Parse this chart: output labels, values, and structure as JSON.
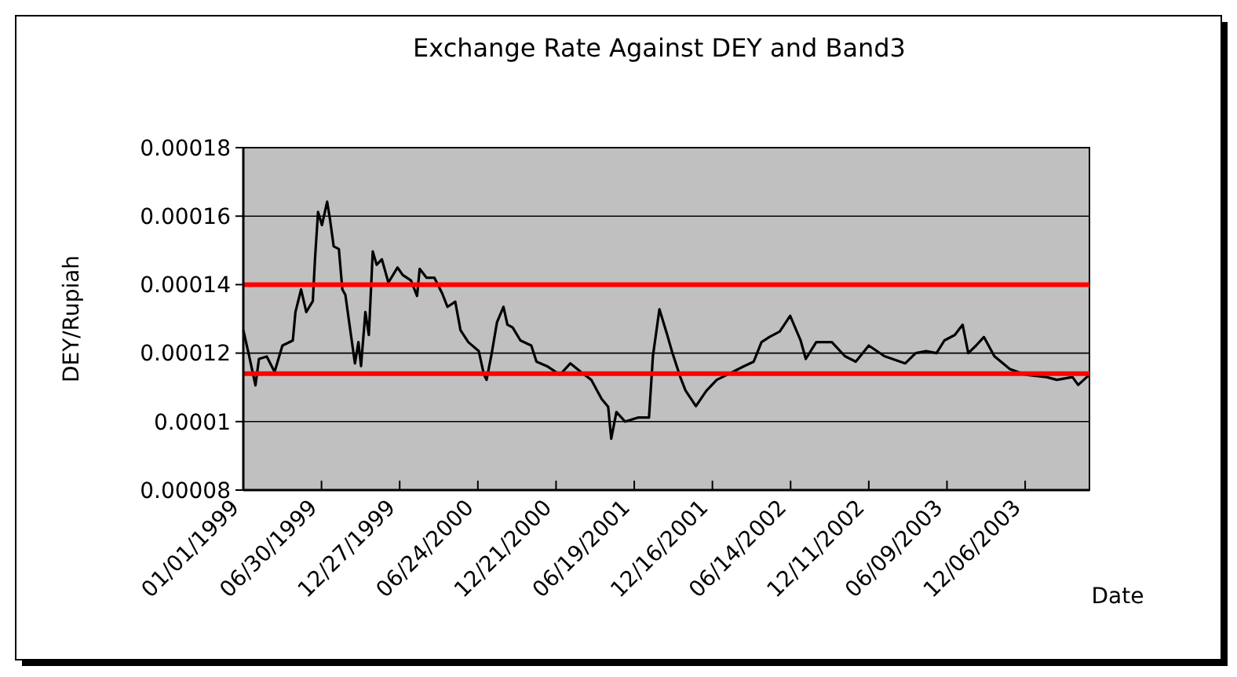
{
  "chart_data": {
    "type": "line",
    "title": "Exchange Rate Against DEY and Band3",
    "xlabel": "Date",
    "ylabel": "DEY/Rupiah",
    "x": [
      "1999-01-01",
      "1999-01-13",
      "1999-01-29",
      "1999-02-06",
      "1999-02-24",
      "1999-03-14",
      "1999-04-01",
      "1999-04-25",
      "1999-05-01",
      "1999-05-14",
      "1999-05-26",
      "1999-06-10",
      "1999-06-15",
      "1999-06-22",
      "1999-07-01",
      "1999-07-13",
      "1999-07-19",
      "1999-07-28",
      "1999-08-09",
      "1999-08-17",
      "1999-08-24",
      "1999-09-03",
      "1999-09-15",
      "1999-09-23",
      "1999-09-29",
      "1999-10-09",
      "1999-10-17",
      "1999-10-26",
      "1999-11-04",
      "1999-11-16",
      "1999-12-01",
      "1999-12-22",
      "2000-01-03",
      "2000-01-22",
      "2000-02-05",
      "2000-02-11",
      "2000-02-27",
      "2000-03-16",
      "2000-04-03",
      "2000-04-15",
      "2000-05-03",
      "2000-05-15",
      "2000-06-02",
      "2000-06-26",
      "2000-07-08",
      "2000-07-14",
      "2000-07-26",
      "2000-08-07",
      "2000-08-22",
      "2000-08-31",
      "2000-09-12",
      "2000-09-30",
      "2000-10-25",
      "2000-11-06",
      "2000-11-30",
      "2000-12-30",
      "2001-01-23",
      "2001-02-16",
      "2001-03-12",
      "2001-04-05",
      "2001-04-20",
      "2001-04-27",
      "2001-05-09",
      "2001-05-29",
      "2001-06-29",
      "2001-07-23",
      "2001-08-01",
      "2001-08-16",
      "2001-09-03",
      "2001-09-15",
      "2001-10-03",
      "2001-10-15",
      "2001-11-08",
      "2001-12-02",
      "2001-12-26",
      "2002-01-19",
      "2002-02-24",
      "2002-03-21",
      "2002-04-08",
      "2002-04-26",
      "2002-05-20",
      "2002-06-13",
      "2002-07-07",
      "2002-07-19",
      "2002-08-12",
      "2002-09-17",
      "2002-10-17",
      "2002-11-11",
      "2002-12-11",
      "2003-01-16",
      "2003-03-05",
      "2003-03-29",
      "2003-04-22",
      "2003-05-16",
      "2003-06-03",
      "2003-06-27",
      "2003-07-15",
      "2003-07-28",
      "2003-08-15",
      "2003-09-02",
      "2003-09-26",
      "2003-11-01",
      "2003-12-07",
      "2004-01-24",
      "2004-02-17",
      "2004-03-24",
      "2004-04-06",
      "2004-05-02"
    ],
    "series": [
      {
        "color": "#000000",
        "values": [
          0.0001267,
          0.00012,
          0.0001106,
          0.0001183,
          0.000119,
          0.0001145,
          0.0001222,
          0.0001237,
          0.000132,
          0.0001386,
          0.000132,
          0.0001352,
          0.0001474,
          0.0001612,
          0.0001574,
          0.0001642,
          0.0001596,
          0.0001512,
          0.0001504,
          0.0001386,
          0.000137,
          0.0001278,
          0.000117,
          0.0001232,
          0.0001162,
          0.000132,
          0.0001253,
          0.0001497,
          0.0001458,
          0.0001474,
          0.0001406,
          0.000145,
          0.0001428,
          0.0001412,
          0.0001367,
          0.0001446,
          0.000142,
          0.000142,
          0.0001374,
          0.0001335,
          0.000135,
          0.0001267,
          0.0001232,
          0.0001206,
          0.0001137,
          0.0001122,
          0.00012,
          0.000129,
          0.0001335,
          0.0001283,
          0.0001275,
          0.0001237,
          0.0001222,
          0.0001175,
          0.0001162,
          0.0001137,
          0.000117,
          0.0001145,
          0.0001122,
          0.0001066,
          0.0001043,
          9.5e-05,
          0.0001028,
          0.0001,
          0.0001012,
          0.0001012,
          0.0001191,
          0.0001328,
          0.0001253,
          0.00012,
          0.000113,
          0.0001091,
          0.0001045,
          0.000109,
          0.0001122,
          0.0001137,
          0.000116,
          0.0001175,
          0.0001232,
          0.0001247,
          0.0001263,
          0.0001309,
          0.0001237,
          0.0001183,
          0.0001232,
          0.0001232,
          0.0001191,
          0.0001175,
          0.0001222,
          0.0001191,
          0.000117,
          0.00012,
          0.0001206,
          0.00012,
          0.0001237,
          0.0001253,
          0.0001283,
          0.00012,
          0.0001222,
          0.0001247,
          0.0001191,
          0.0001153,
          0.0001137,
          0.000113,
          0.0001122,
          0.000113,
          0.0001107,
          0.0001137
        ]
      }
    ],
    "xlim": [
      "1999-01-01",
      "2004-05-02"
    ],
    "xticks": [
      {
        "value": "1999-01-01",
        "label": "01/01/1999"
      },
      {
        "value": "1999-06-30",
        "label": "06/30/1999"
      },
      {
        "value": "1999-12-27",
        "label": "12/27/1999"
      },
      {
        "value": "2000-06-24",
        "label": "06/24/2000"
      },
      {
        "value": "2000-12-21",
        "label": "12/21/2000"
      },
      {
        "value": "2001-06-19",
        "label": "06/19/2001"
      },
      {
        "value": "2001-12-16",
        "label": "12/16/2001"
      },
      {
        "value": "2002-06-14",
        "label": "06/14/2002"
      },
      {
        "value": "2002-12-11",
        "label": "12/11/2002"
      },
      {
        "value": "2003-06-09",
        "label": "06/09/2003"
      },
      {
        "value": "2003-12-06",
        "label": "12/06/2003"
      }
    ],
    "ylim": [
      8e-05,
      0.00018
    ],
    "yticks": [
      {
        "value": 8e-05,
        "label": "0.00008"
      },
      0.0001,
      0.00012,
      0.00014,
      0.00016,
      0.00018
    ],
    "ref_lines": [
      {
        "axis": "y",
        "value": 0.00014,
        "color": "#ff0000"
      },
      {
        "axis": "y",
        "value": 0.000114,
        "color": "#ff0000"
      }
    ],
    "grid": "y",
    "marker": "none",
    "line_style": "solid"
  }
}
